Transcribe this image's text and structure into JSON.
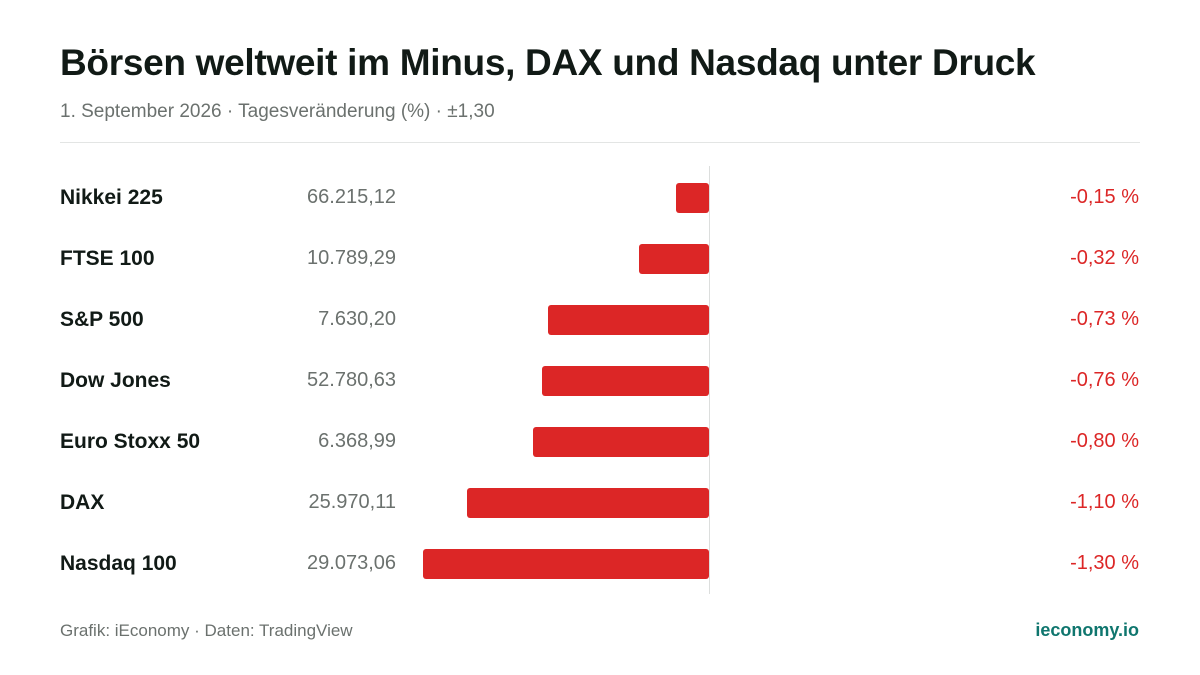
{
  "title": "Börsen weltweit im Minus, DAX und Nasdaq unter Druck",
  "subtitle": "1. September 2026 · Tagesveränderung (%) · ±1,30",
  "footer": {
    "source": "Grafik: iEconomy · Daten: TradingView",
    "brand": "ieconomy.io"
  },
  "colors": {
    "negative": "#dc2626",
    "brand": "#0f766e"
  },
  "chart_data": {
    "type": "bar",
    "orientation": "horizontal",
    "title": "Börsen weltweit im Minus, DAX und Nasdaq unter Druck",
    "subtitle": "1. September 2026 · Tagesveränderung (%) · ±1,30",
    "xlim": [
      -1.3,
      1.3
    ],
    "grid": false,
    "rows": [
      {
        "name": "Nikkei 225",
        "level": "66.215,12",
        "change": -0.15,
        "change_label": "-0,15 %"
      },
      {
        "name": "FTSE 100",
        "level": "10.789,29",
        "change": -0.32,
        "change_label": "-0,32 %"
      },
      {
        "name": "S&P 500",
        "level": "7.630,20",
        "change": -0.73,
        "change_label": "-0,73 %"
      },
      {
        "name": "Dow Jones",
        "level": "52.780,63",
        "change": -0.76,
        "change_label": "-0,76 %"
      },
      {
        "name": "Euro Stoxx 50",
        "level": "6.368,99",
        "change": -0.8,
        "change_label": "-0,80 %"
      },
      {
        "name": "DAX",
        "level": "25.970,11",
        "change": -1.1,
        "change_label": "-1,10 %"
      },
      {
        "name": "Nasdaq 100",
        "level": "29.073,06",
        "change": -1.3,
        "change_label": "-1,30 %"
      }
    ]
  }
}
